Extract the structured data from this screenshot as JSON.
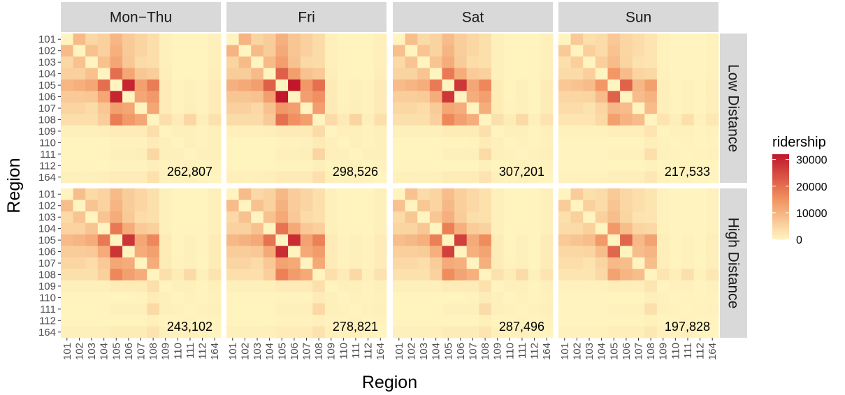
{
  "chart_data": {
    "type": "heatmap",
    "xlabel": "Region",
    "ylabel": "Region",
    "regions": [
      "101",
      "102",
      "103",
      "104",
      "105",
      "106",
      "107",
      "108",
      "109",
      "110",
      "111",
      "112",
      "164"
    ],
    "columns": [
      "Mon−Thu",
      "Fri",
      "Sat",
      "Sun"
    ],
    "rows": [
      "Low Distance",
      "High Distance"
    ],
    "colors": {
      "low": "#fff5c0",
      "mid": "#f08c5c",
      "high": "#c0172a",
      "strip": "#d9d9d9",
      "panel_bg": "#ebebeb"
    },
    "legend": {
      "title": "ridership",
      "ticks": [
        0,
        10000,
        20000,
        30000
      ],
      "tick_labels": [
        "0",
        "10000",
        "20000",
        "30000"
      ],
      "max": 32000
    },
    "base_matrix": [
      [
        200,
        9000,
        4500,
        5500,
        9500,
        6500,
        5000,
        3500,
        800,
        300,
        300,
        300,
        800
      ],
      [
        9000,
        200,
        8000,
        5500,
        10500,
        6500,
        5000,
        3500,
        800,
        300,
        300,
        300,
        800
      ],
      [
        4500,
        8000,
        200,
        8000,
        12000,
        7000,
        4000,
        3500,
        800,
        300,
        300,
        300,
        800
      ],
      [
        5500,
        5500,
        8000,
        200,
        20000,
        12000,
        7000,
        6000,
        900,
        300,
        300,
        300,
        900
      ],
      [
        9500,
        10500,
        12000,
        20000,
        200,
        30000,
        13000,
        18000,
        1500,
        400,
        800,
        400,
        1500
      ],
      [
        6500,
        6500,
        7000,
        12000,
        30000,
        200,
        12000,
        14000,
        1500,
        400,
        800,
        400,
        1500
      ],
      [
        5000,
        5000,
        4000,
        7000,
        13000,
        12000,
        200,
        12000,
        1500,
        500,
        900,
        400,
        1500
      ],
      [
        3500,
        3500,
        3500,
        6000,
        18000,
        14000,
        12000,
        200,
        3500,
        1500,
        4500,
        900,
        3000
      ],
      [
        800,
        800,
        800,
        900,
        1500,
        1500,
        1500,
        3500,
        200,
        800,
        800,
        400,
        800
      ],
      [
        300,
        300,
        300,
        300,
        400,
        400,
        500,
        1500,
        800,
        200,
        700,
        400,
        700
      ],
      [
        300,
        300,
        300,
        300,
        800,
        800,
        900,
        4500,
        800,
        700,
        200,
        700,
        800
      ],
      [
        300,
        300,
        300,
        300,
        400,
        400,
        400,
        900,
        400,
        400,
        700,
        200,
        500
      ],
      [
        800,
        800,
        800,
        900,
        1500,
        1500,
        1500,
        3000,
        800,
        700,
        800,
        500,
        200
      ]
    ],
    "panels": [
      {
        "column": "Mon−Thu",
        "row": "Low Distance",
        "total": "262,807",
        "scale": 1.0
      },
      {
        "column": "Fri",
        "row": "Low Distance",
        "total": "298,526",
        "scale": 1.1
      },
      {
        "column": "Sat",
        "row": "Low Distance",
        "total": "307,201",
        "scale": 0.92
      },
      {
        "column": "Sun",
        "row": "Low Distance",
        "total": "217,533",
        "scale": 0.72
      },
      {
        "column": "Mon−Thu",
        "row": "High Distance",
        "total": "243,102",
        "scale": 0.93
      },
      {
        "column": "Fri",
        "row": "High Distance",
        "total": "278,821",
        "scale": 0.97
      },
      {
        "column": "Sat",
        "row": "High Distance",
        "total": "287,496",
        "scale": 0.88
      },
      {
        "column": "Sun",
        "row": "High Distance",
        "total": "197,828",
        "scale": 0.7
      }
    ]
  }
}
